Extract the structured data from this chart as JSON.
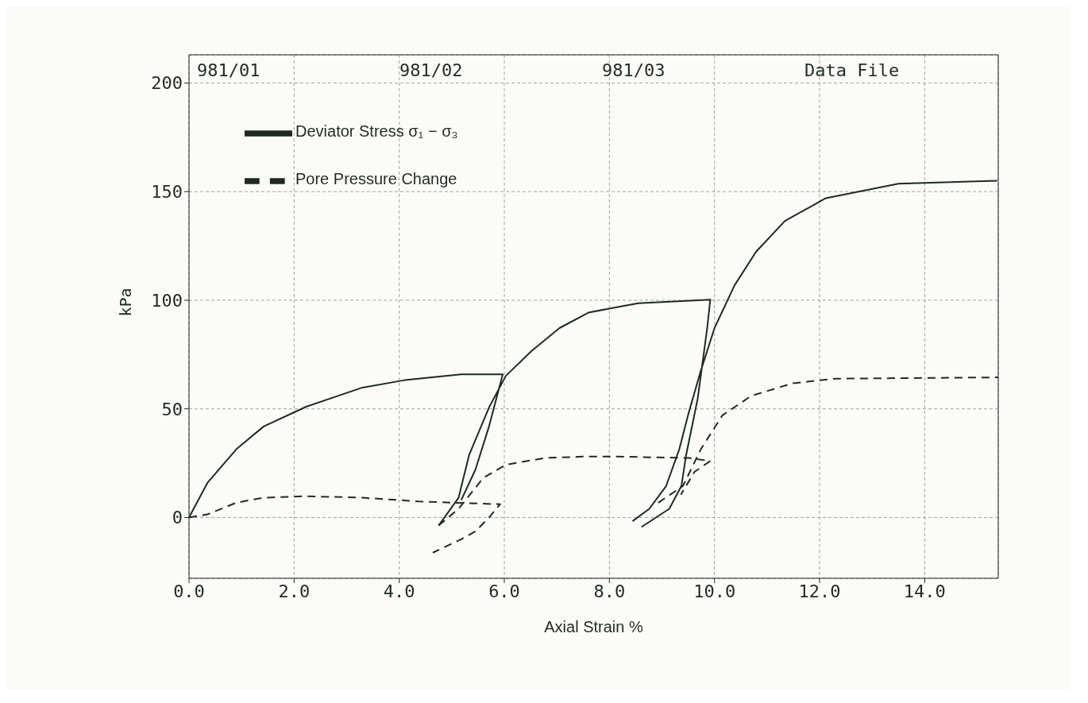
{
  "chart_data": {
    "type": "line",
    "xlabel": "Axial Strain %",
    "ylabel": "kPa",
    "annotations": [
      "981/01",
      "981/02",
      "981/03",
      "Data File"
    ],
    "xlim": [
      0,
      15.4
    ],
    "ylim": [
      -28,
      213
    ],
    "xticks": [
      {
        "value": 0,
        "label": "0.0"
      },
      {
        "value": 2,
        "label": "2.0"
      },
      {
        "value": 4,
        "label": "4.0"
      },
      {
        "value": 6,
        "label": "6.0"
      },
      {
        "value": 8,
        "label": "8.0"
      },
      {
        "value": 10,
        "label": "10.0"
      },
      {
        "value": 12,
        "label": "12.0"
      },
      {
        "value": 14,
        "label": "14.0"
      }
    ],
    "yticks": [
      0,
      50,
      100,
      150,
      200
    ],
    "grid": true,
    "legend": "top left",
    "marker": "none",
    "series": [
      {
        "name": "Deviator Stress σ₁ − σ₃",
        "color": "#1f2a22",
        "line_style": "solid",
        "x": [
          0,
          0.35,
          0.9,
          1.42,
          2.23,
          3.3,
          4.1,
          5.18,
          5.97,
          5.71,
          5.45,
          5.18,
          null,
          4.75,
          5.13,
          5.33,
          5.71,
          6.03,
          6.52,
          7.05,
          7.6,
          8.18,
          8.55,
          9.92,
          9.86,
          9.68,
          9.46,
          9.37,
          9.14,
          8.61,
          null,
          8.44,
          8.76,
          9.08,
          9.33,
          9.51,
          9.74,
          10.0,
          10.38,
          10.79,
          11.34,
          12.12,
          13.5,
          15.38
        ],
        "values": [
          0,
          15.9,
          31.4,
          41.9,
          51,
          59.8,
          63.2,
          65.9,
          65.9,
          42,
          22,
          8,
          null,
          -3.7,
          9.1,
          28.7,
          50.7,
          65.2,
          76.7,
          87.2,
          94.3,
          97,
          98.6,
          100.3,
          87,
          54.7,
          28.7,
          14.5,
          4,
          -4.4,
          null,
          -1.7,
          4,
          14.5,
          31.4,
          48.3,
          67.6,
          87.2,
          106.8,
          122.3,
          136.5,
          147,
          153.7,
          155
        ]
      },
      {
        "name": "Pore Pressure Change",
        "color": "#1f2a22",
        "line_style": "dashed",
        "x": [
          0,
          0.35,
          0.9,
          1.42,
          2.23,
          3.3,
          4.37,
          5.01,
          5.92,
          5.71,
          5.45,
          5.18,
          4.64,
          null,
          4.75,
          5.13,
          5.6,
          6.03,
          6.78,
          7.48,
          8.18,
          9.51,
          9.92,
          9.62,
          9.36,
          null,
          8.93,
          9.4,
          9.74,
          10.15,
          10.7,
          11.49,
          12.3,
          15.4
        ],
        "values": [
          0,
          1.4,
          6.8,
          9.1,
          9.8,
          9.1,
          7.4,
          6.8,
          6.1,
          0,
          -6.4,
          -10,
          -16.2,
          null,
          -3.7,
          4,
          18.2,
          24.3,
          27.4,
          28,
          28,
          27.4,
          26,
          21,
          10.5,
          null,
          6.8,
          14.5,
          31.4,
          47,
          56,
          61.8,
          63.9,
          64.5
        ]
      }
    ]
  }
}
